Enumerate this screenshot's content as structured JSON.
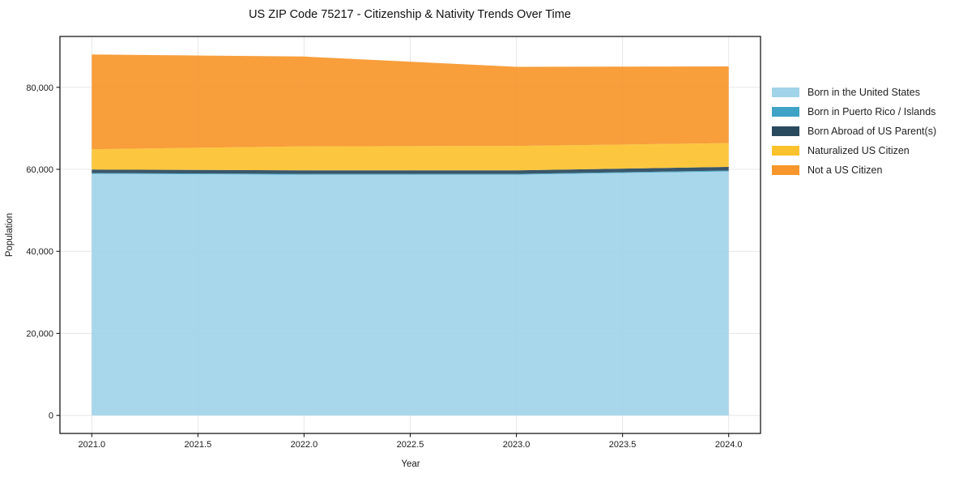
{
  "chart_data": {
    "type": "area",
    "stacked": true,
    "title": "US ZIP Code 75217 - Citizenship & Nativity Trends Over Time",
    "xlabel": "Year",
    "ylabel": "Population",
    "x": [
      2021,
      2022,
      2023,
      2024
    ],
    "series": [
      {
        "name": "Born in the United States",
        "color": "#a1d3e9",
        "values": [
          58900,
          58700,
          58700,
          59500
        ]
      },
      {
        "name": "Born in Puerto Rico / Islands",
        "color": "#3ea3c4",
        "values": [
          200,
          200,
          200,
          200
        ]
      },
      {
        "name": "Born Abroad of US Parent(s)",
        "color": "#29495d",
        "values": [
          850,
          850,
          850,
          900
        ]
      },
      {
        "name": "Naturalized US Citizen",
        "color": "#fcc22e",
        "values": [
          4950,
          5850,
          5950,
          5800
        ]
      },
      {
        "name": "Not a US Citizen",
        "color": "#f7962a",
        "values": [
          23100,
          21900,
          19300,
          18700
        ]
      }
    ],
    "totals": [
      88000,
      87500,
      85000,
      85100
    ],
    "xlim": [
      2020.85,
      2024.15
    ],
    "ylim": [
      -4400,
      92400
    ],
    "xticks": {
      "values": [
        2021.0,
        2021.5,
        2022.0,
        2022.5,
        2023.0,
        2023.5,
        2024.0
      ],
      "labels": [
        "2021.0",
        "2021.5",
        "2022.0",
        "2022.5",
        "2023.0",
        "2023.5",
        "2024.0"
      ]
    },
    "yticks": {
      "values": [
        0,
        20000,
        40000,
        60000,
        80000
      ],
      "labels": [
        "0",
        "20,000",
        "40,000",
        "60,000",
        "80,000"
      ]
    },
    "grid": true,
    "legend_position": "right",
    "colors": {
      "spine": "#1a1a1a",
      "grid": "#e7e7e7",
      "tick_text": "#1a1a1a",
      "title_text": "#111111"
    }
  }
}
